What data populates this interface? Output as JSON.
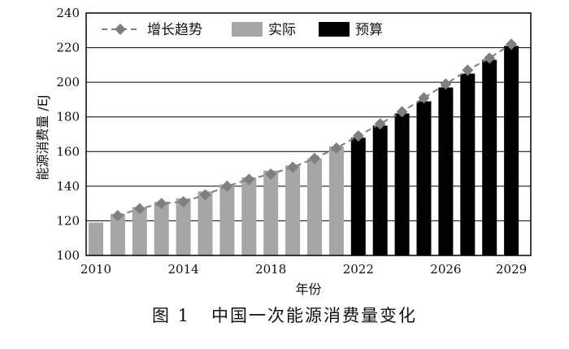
{
  "caption": "图 1   中国一次能源消费量变化",
  "chart_data": {
    "type": "bar",
    "xlabel": "年份",
    "ylabel": "能源消费量 /EJ",
    "ylim": [
      100,
      240
    ],
    "yticks": [
      100,
      120,
      140,
      160,
      180,
      200,
      220,
      240
    ],
    "xtick_labels": [
      "2010",
      "2014",
      "2018",
      "2022",
      "2026",
      "2029"
    ],
    "grid": "horizontal",
    "legend_position": "top",
    "legend": [
      {
        "key": "trend",
        "label": "增长趋势"
      },
      {
        "key": "actual",
        "label": "实际"
      },
      {
        "key": "budget",
        "label": "预算"
      }
    ],
    "categories": [
      2010,
      2011,
      2012,
      2013,
      2014,
      2015,
      2016,
      2017,
      2018,
      2019,
      2020,
      2021,
      2022,
      2023,
      2024,
      2025,
      2026,
      2027,
      2028,
      2029
    ],
    "series": [
      {
        "key": "actual",
        "name": "实际",
        "color": "#a6a6a6",
        "values": [
          119,
          124,
          128,
          131,
          133,
          137,
          141,
          145,
          149,
          152,
          156,
          163,
          null,
          null,
          null,
          null,
          null,
          null,
          null,
          null
        ]
      },
      {
        "key": "budget",
        "name": "预算",
        "color": "#000000",
        "values": [
          null,
          null,
          null,
          null,
          null,
          null,
          null,
          null,
          null,
          null,
          null,
          null,
          168,
          175,
          182,
          189,
          197,
          205,
          213,
          221
        ]
      },
      {
        "key": "trend",
        "name": "增长趋势",
        "color": "#7f7f7f",
        "marker": "diamond",
        "line_style": "dashed",
        "values": [
          null,
          123,
          127,
          130,
          131,
          135,
          140,
          144,
          147,
          151,
          156,
          162,
          169,
          176,
          183,
          191,
          199,
          207,
          214,
          222
        ]
      }
    ]
  }
}
